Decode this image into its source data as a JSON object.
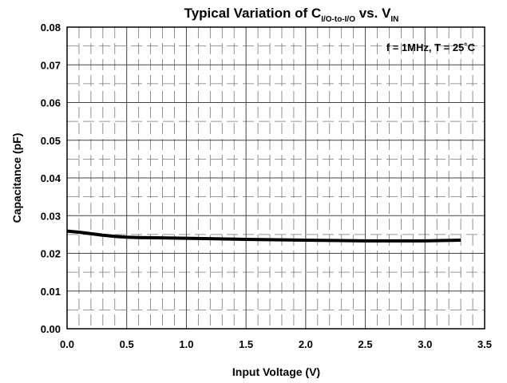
{
  "chart_data": {
    "type": "line",
    "title": {
      "prefix": "Typical Variation of C",
      "sub1": "I/O-to-I/O",
      "middle": " vs. V",
      "sub2": "IN"
    },
    "xlabel": "Input Voltage (V)",
    "ylabel": "Capacitance (pF)",
    "xlim": [
      0.0,
      3.5
    ],
    "ylim": [
      0.0,
      0.08
    ],
    "x_ticks": [
      "0.0",
      "0.5",
      "1.0",
      "1.5",
      "2.0",
      "2.5",
      "3.0",
      "3.5"
    ],
    "y_ticks": [
      "0.00",
      "0.01",
      "0.02",
      "0.03",
      "0.04",
      "0.05",
      "0.06",
      "0.07",
      "0.08"
    ],
    "grid": true,
    "annotation": "f = 1MHz, T = 25˚C",
    "series": [
      {
        "x": [
          0.0,
          0.1,
          0.2,
          0.3,
          0.4,
          0.5,
          0.6,
          0.8,
          1.0,
          1.2,
          1.5,
          2.0,
          2.5,
          3.0,
          3.3
        ],
        "values": [
          0.0259,
          0.0256,
          0.0252,
          0.0248,
          0.0245,
          0.0243,
          0.0242,
          0.0241,
          0.024,
          0.0239,
          0.0237,
          0.0235,
          0.0233,
          0.0233,
          0.0235
        ],
        "color": "#000000"
      }
    ]
  }
}
